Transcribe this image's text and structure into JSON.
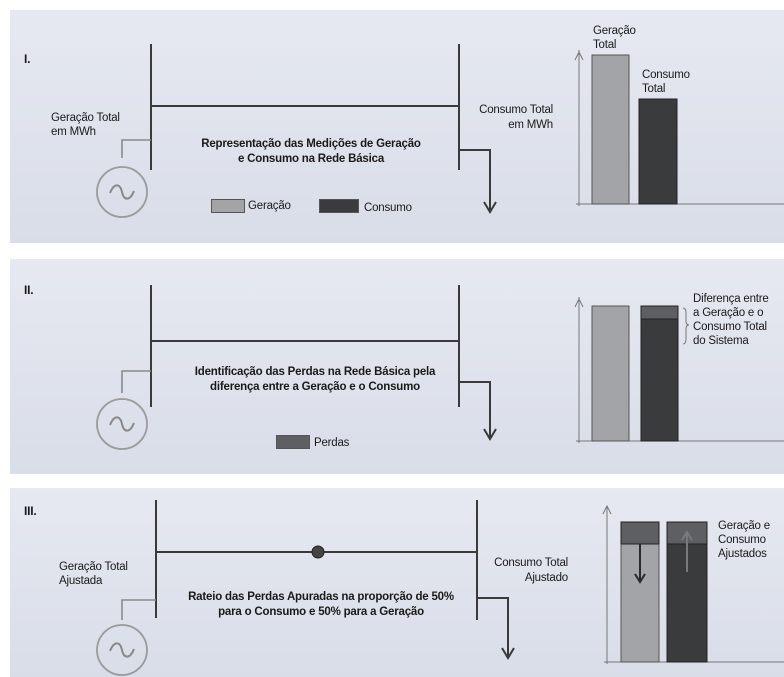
{
  "panel1": {
    "roman": "I.",
    "gen_label_l1": "Geração Total",
    "gen_label_l2": "em MWh",
    "title_l1": "Representação das Medições de Geração",
    "title_l2": "e Consumo na Rede Básica",
    "cons_label_l1": "Consumo Total",
    "cons_label_l2": "em MWh",
    "legend_gen": "Geração",
    "legend_cons": "Consumo",
    "bar_gen_l1": "Geração",
    "bar_gen_l2": "Total",
    "bar_cons_l1": "Consumo",
    "bar_cons_l2": "Total"
  },
  "panel2": {
    "roman": "II.",
    "title_l1": "Identificação das Perdas na Rede Básica pela",
    "title_l2": "diferença entre a Geração e o Consumo",
    "legend_losses": "Perdas",
    "diff_l1": "Diferença entre",
    "diff_l2": "a Geração e o",
    "diff_l3": "Consumo Total",
    "diff_l4": "do Sistema"
  },
  "panel3": {
    "roman": "III.",
    "gen_label_l1": "Geração Total",
    "gen_label_l2": "Ajustada",
    "title_l1": "Rateio das Perdas Apuradas na proporção de 50%",
    "title_l2": "para o Consumo e 50% para a Geração",
    "cons_label_l1": "Consumo Total",
    "cons_label_l2": "Ajustado",
    "adj_l1": "Geração e",
    "adj_l2": "Consumo",
    "adj_l3": "Ajustados"
  },
  "colors": {
    "generation": "#a3a4a8",
    "consumption": "#3a3b3d",
    "losses": "#5e5f62",
    "line": "#3a3a3a",
    "generator": "#9a9a9a"
  }
}
